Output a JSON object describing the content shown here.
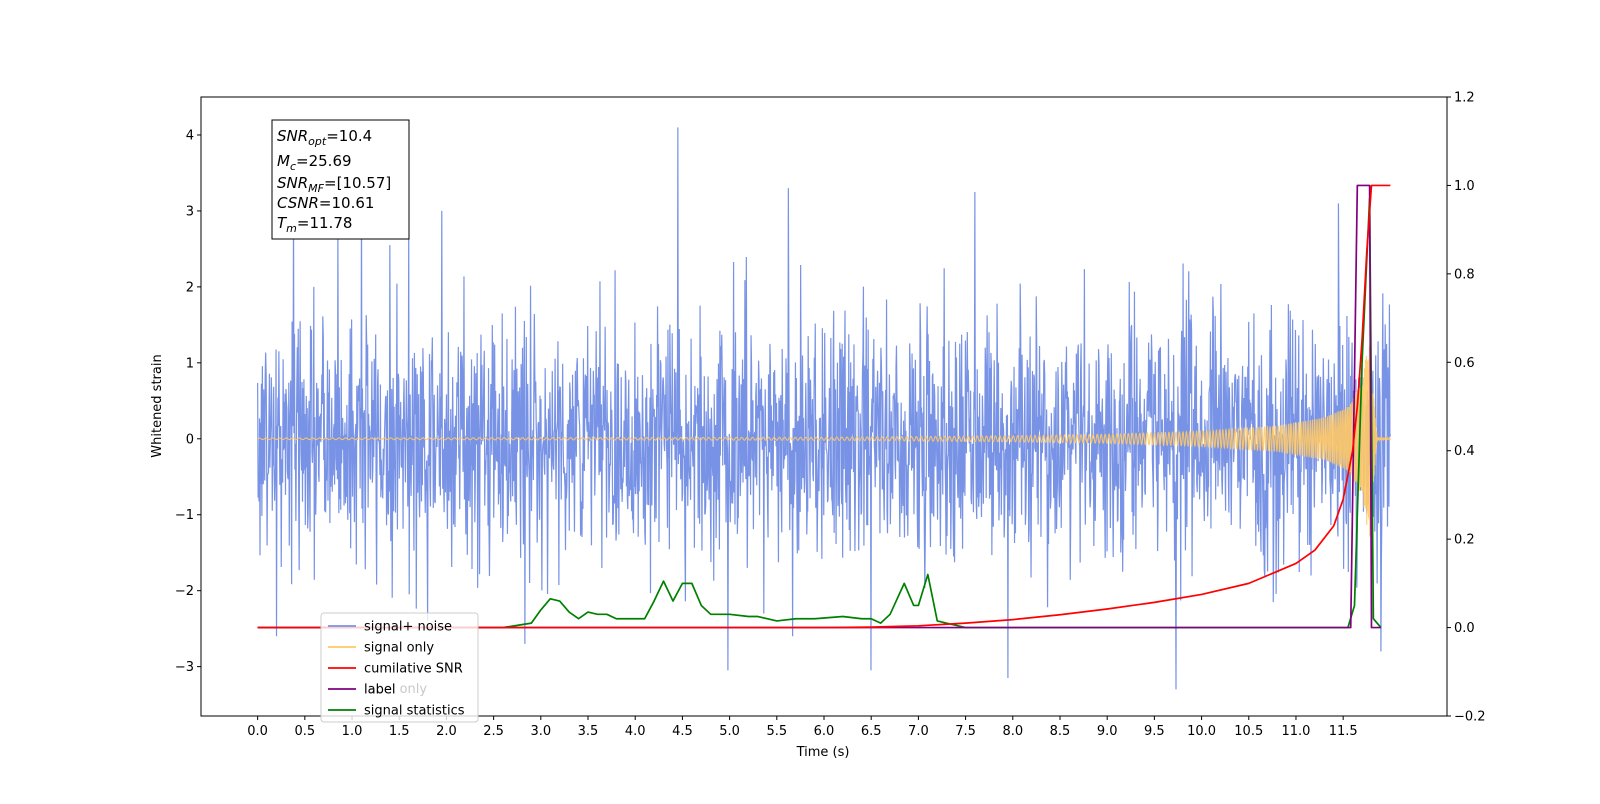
{
  "chart_data": {
    "type": "line",
    "xlabel": "Time (s)",
    "ylabel": "Whitened strain",
    "xlim": [
      -0.6,
      12.6
    ],
    "ylim": [
      -3.65,
      4.5
    ],
    "y2lim": [
      -0.2,
      1.2
    ],
    "x_ticks": [
      "0.0",
      "0.5",
      "1.0",
      "1.5",
      "2.0",
      "2.5",
      "3.0",
      "3.5",
      "4.0",
      "4.5",
      "5.0",
      "5.5",
      "6.0",
      "6.5",
      "7.0",
      "7.5",
      "8.0",
      "8.5",
      "9.0",
      "9.5",
      "10.0",
      "10.5",
      "11.0",
      "11.5"
    ],
    "y_ticks": [
      "−3",
      "−2",
      "−1",
      "0",
      "1",
      "2",
      "3",
      "4"
    ],
    "y2_ticks": [
      "−0.2",
      "0.0",
      "0.2",
      "0.4",
      "0.6",
      "0.8",
      "1.0",
      "1.2"
    ],
    "info_box": {
      "snr_opt": {
        "base": "SNR",
        "sub": "opt",
        "value": "=10.4"
      },
      "mc": {
        "base": "M",
        "sub": "c",
        "value": "=25.69"
      },
      "snr_mf": {
        "base": "SNR",
        "sub": "MF",
        "value": "=[10.57]"
      },
      "csnr": {
        "base": "CSNR",
        "sub": "",
        "value": "=10.61"
      },
      "tm": {
        "base": "T",
        "sub": "m",
        "value": "=11.78"
      }
    },
    "legend": {
      "placement": "lower-left",
      "entries": [
        {
          "label": "signal+ noise",
          "color": "#7893e6"
        },
        {
          "label": "signal only",
          "color": "#ffc966"
        },
        {
          "label": "cumilative SNR",
          "color": "#ff0000"
        },
        {
          "label": "label",
          "color": "#800080"
        },
        {
          "label": "signal statistics",
          "color": "#008000"
        }
      ],
      "hidden_text": "label only"
    },
    "series": [
      {
        "name": "signal+ noise",
        "axis": "left",
        "color": "#7893e6",
        "x_range": [
          0.0,
          12.0
        ],
        "typical_amplitude": 1.9,
        "peaks": [
          {
            "x": 0.38,
            "y": 3.05
          },
          {
            "x": 0.85,
            "y": 2.75
          },
          {
            "x": 1.1,
            "y": 3.15
          },
          {
            "x": 1.6,
            "y": 2.9
          },
          {
            "x": 1.95,
            "y": 3.0
          },
          {
            "x": 2.83,
            "y": 3.2
          },
          {
            "x": 4.45,
            "y": 4.1
          },
          {
            "x": 5.62,
            "y": 3.3
          },
          {
            "x": 7.6,
            "y": 3.25
          },
          {
            "x": 11.45,
            "y": 3.1
          },
          {
            "x": 1.8,
            "y": -2.4
          },
          {
            "x": 2.83,
            "y": -2.7
          },
          {
            "x": 4.98,
            "y": -3.05
          },
          {
            "x": 6.5,
            "y": -3.05
          },
          {
            "x": 7.95,
            "y": -3.15
          },
          {
            "x": 9.73,
            "y": -3.3
          },
          {
            "x": 11.9,
            "y": -2.8
          },
          {
            "x": 0.2,
            "y": -2.6
          }
        ]
      },
      {
        "name": "signal only",
        "axis": "left",
        "color": "#ffc966",
        "x_range": [
          0.0,
          12.0
        ],
        "envelope": [
          [
            0,
            0.01
          ],
          [
            6,
            0.02
          ],
          [
            8,
            0.04
          ],
          [
            9,
            0.06
          ],
          [
            10,
            0.1
          ],
          [
            10.8,
            0.17
          ],
          [
            11.3,
            0.28
          ],
          [
            11.55,
            0.42
          ],
          [
            11.7,
            0.75
          ],
          [
            11.78,
            1.4
          ],
          [
            11.82,
            0.6
          ],
          [
            11.86,
            0.02
          ],
          [
            12.0,
            0.01
          ]
        ]
      },
      {
        "name": "cumilative SNR",
        "axis": "right",
        "color": "#ff0000",
        "x": [
          0,
          6,
          6.5,
          7,
          7.5,
          8,
          8.5,
          9,
          9.5,
          10,
          10.5,
          11,
          11.2,
          11.4,
          11.5,
          11.6,
          11.65,
          11.7,
          11.75,
          11.8,
          12.0
        ],
        "y": [
          0,
          0,
          0.001,
          0.004,
          0.01,
          0.018,
          0.029,
          0.042,
          0.057,
          0.075,
          0.1,
          0.145,
          0.175,
          0.23,
          0.29,
          0.4,
          0.5,
          0.65,
          0.85,
          1.0,
          1.0
        ]
      },
      {
        "name": "label",
        "axis": "right",
        "color": "#800080",
        "x": [
          0,
          11.58,
          11.65,
          11.78,
          11.8,
          11.9
        ],
        "y": [
          0,
          0,
          1,
          1,
          0,
          0
        ]
      },
      {
        "name": "signal statistics",
        "axis": "right",
        "color": "#008000",
        "x": [
          0,
          2.6,
          2.75,
          2.9,
          3.0,
          3.1,
          3.2,
          3.3,
          3.4,
          3.5,
          3.6,
          3.7,
          3.8,
          3.9,
          4.0,
          4.1,
          4.2,
          4.3,
          4.4,
          4.5,
          4.6,
          4.7,
          4.8,
          5.0,
          5.2,
          5.3,
          5.5,
          5.7,
          5.9,
          6.2,
          6.4,
          6.5,
          6.6,
          6.7,
          6.85,
          6.95,
          7.0,
          7.1,
          7.2,
          7.3,
          7.5,
          11.55,
          11.62,
          11.7,
          11.78,
          11.82,
          11.9
        ],
        "y": [
          0,
          0,
          0.005,
          0.01,
          0.04,
          0.065,
          0.06,
          0.035,
          0.02,
          0.035,
          0.03,
          0.03,
          0.02,
          0.02,
          0.02,
          0.02,
          0.06,
          0.105,
          0.06,
          0.1,
          0.1,
          0.05,
          0.03,
          0.03,
          0.025,
          0.025,
          0.015,
          0.02,
          0.02,
          0.025,
          0.02,
          0.02,
          0.01,
          0.03,
          0.1,
          0.05,
          0.05,
          0.12,
          0.015,
          0.01,
          0,
          0,
          0.05,
          0.6,
          0.97,
          0.02,
          0
        ]
      }
    ]
  }
}
